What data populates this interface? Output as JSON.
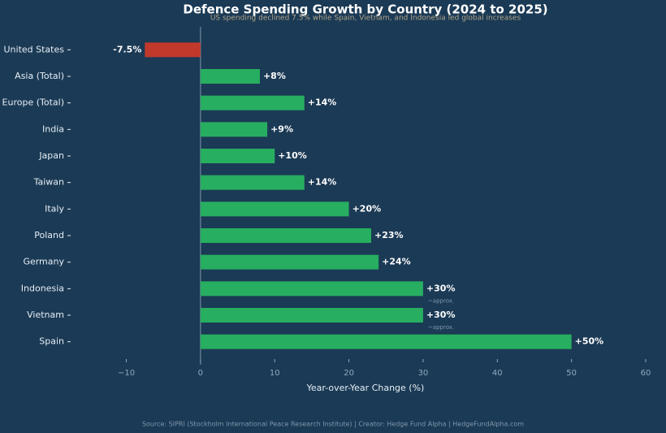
{
  "chart_data": {
    "type": "hbar",
    "title": "Defence Spending Growth by Country (2024 to 2025)",
    "subtitle": "US spending declined 7.5% while Spain, Vietnam, and Indonesia led global increases",
    "x_label": "Year-over-Year Change (%)",
    "source": "Source: SIPRI (Stockholm International Peace Research Institute) | Creator: Hedge Fund Alpha | HedgeFundAlpha.com",
    "categories": [
      "United States",
      "Asia (Total)",
      "Europe (Total)",
      "India",
      "Japan",
      "Taiwan",
      "Italy",
      "Poland",
      "Germany",
      "Indonesia",
      "Vietnam",
      "Spain"
    ],
    "values": [
      -7.5,
      8,
      14,
      9,
      10,
      14,
      20,
      23,
      24,
      30,
      30,
      50
    ],
    "value_labels": [
      "-7.5%",
      "+8%",
      "+14%",
      "+9%",
      "+10%",
      "+14%",
      "+20%",
      "+23%",
      "+24%",
      "+30%",
      "+30%",
      "+50%"
    ],
    "value_notes": [
      null,
      null,
      null,
      null,
      null,
      null,
      null,
      null,
      null,
      "~approx.",
      "~approx.",
      null
    ],
    "positive_color": "#27ae60",
    "negative_color": "#c0392b",
    "xlim": [
      -17.5,
      60
    ],
    "xticks": [
      {
        "value": -10,
        "label": "−10"
      },
      0,
      10,
      20,
      30,
      40,
      50,
      60
    ]
  }
}
